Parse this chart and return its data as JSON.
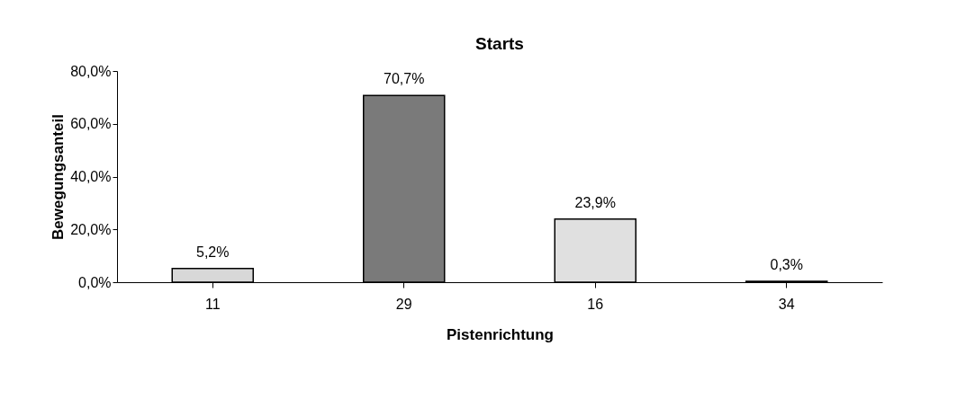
{
  "chart_data": {
    "type": "bar",
    "title": "Starts",
    "xlabel": "Pistenrichtung",
    "ylabel": "Bewegungsanteil",
    "categories": [
      "11",
      "29",
      "16",
      "34"
    ],
    "values": [
      5.2,
      70.7,
      23.9,
      0.3
    ],
    "colors": [
      "#d8d8d8",
      "#7a7a7a",
      "#e0e0e0",
      "#cfcfcf"
    ],
    "value_labels": [
      "5,2%",
      "70,7%",
      "23,9%",
      "0,3%"
    ],
    "ylim": [
      0,
      80
    ],
    "yticks": [
      {
        "value": 0,
        "label": "0,0%"
      },
      {
        "value": 20,
        "label": "20,0%"
      },
      {
        "value": 40,
        "label": "40,0%"
      },
      {
        "value": 60,
        "label": "60,0%"
      },
      {
        "value": 80,
        "label": "80,0%"
      }
    ],
    "grid": false
  }
}
